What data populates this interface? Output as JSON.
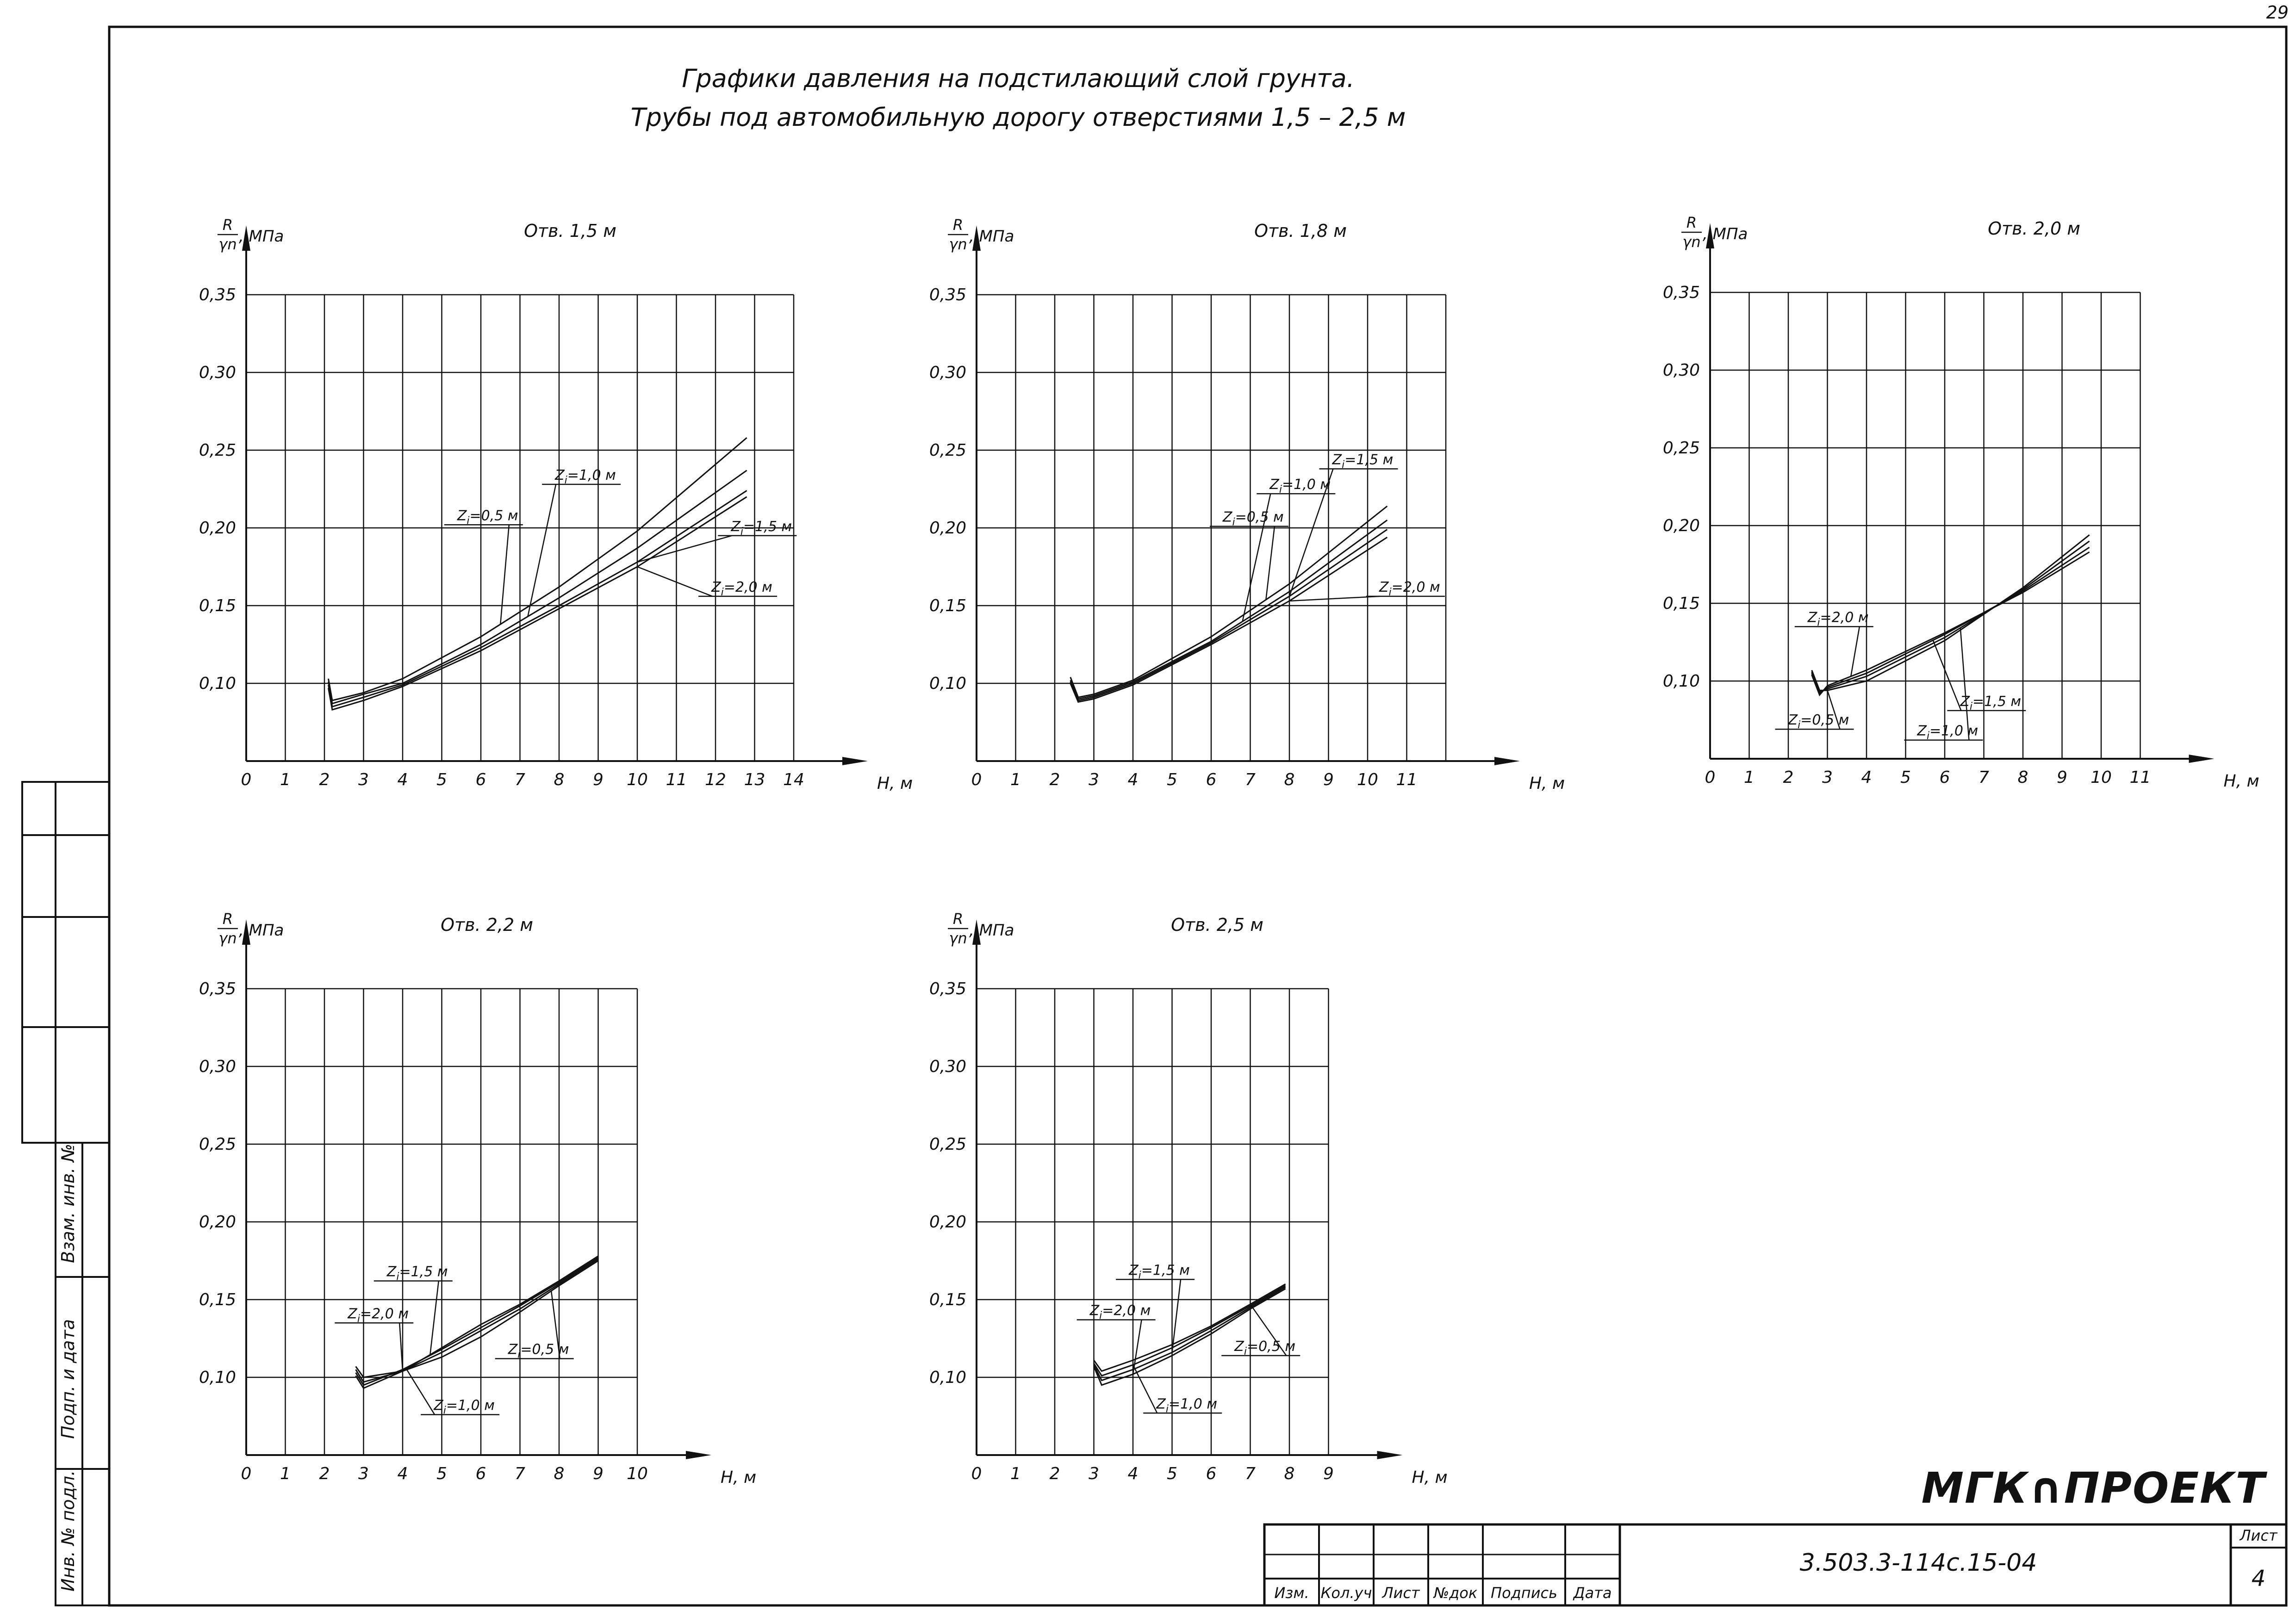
{
  "page_number": "29",
  "title": {
    "line1": "Графики давления на подстилающий слой грунта.",
    "line2": "Трубы под автомобильную дорогу отверстиями 1,5 – 2,5 м"
  },
  "y_axis_fraction": {
    "numerator": "R",
    "denominator": "γn",
    "unit": ", МПа"
  },
  "x_axis_label": "H, м",
  "chart_data": [
    {
      "type": "line",
      "title": "Отв. 1,5 м",
      "xlim": [
        0,
        14
      ],
      "ylim": [
        0.05,
        0.35
      ],
      "x_ticks": [
        "0",
        "1",
        "2",
        "3",
        "4",
        "5",
        "6",
        "7",
        "8",
        "9",
        "10",
        "11",
        "12",
        "13",
        "14"
      ],
      "y_ticks": [
        "0,10",
        "0,15",
        "0,20",
        "0,25",
        "0,30",
        "0,35"
      ],
      "grid": true,
      "series": [
        {
          "name": "Zi=0,5 м",
          "x": [
            2.1,
            2.2,
            3,
            4,
            6,
            8,
            10,
            12.8
          ],
          "y": [
            0.103,
            0.089,
            0.094,
            0.103,
            0.13,
            0.162,
            0.198,
            0.258
          ]
        },
        {
          "name": "Zi=1,0 м",
          "x": [
            2.1,
            2.2,
            3,
            4,
            6,
            8,
            10,
            12.8
          ],
          "y": [
            0.101,
            0.087,
            0.093,
            0.1,
            0.125,
            0.155,
            0.187,
            0.237
          ]
        },
        {
          "name": "Zi=1,5 м",
          "x": [
            2.1,
            2.2,
            3,
            4,
            6,
            8,
            10,
            12.8
          ],
          "y": [
            0.099,
            0.085,
            0.091,
            0.099,
            0.123,
            0.15,
            0.178,
            0.224
          ]
        },
        {
          "name": "Zi=2,0 м",
          "x": [
            2.1,
            2.2,
            3,
            4,
            6,
            8,
            10,
            12.8
          ],
          "y": [
            0.097,
            0.083,
            0.089,
            0.098,
            0.121,
            0.148,
            0.175,
            0.22
          ]
        }
      ],
      "labels": [
        {
          "text": "Zi=0,5 м",
          "x": 5.3,
          "y": 0.202
        },
        {
          "text": "Zi=1,0 м",
          "x": 7.8,
          "y": 0.228
        },
        {
          "text": "Zi=1,5 м",
          "x": 12.3,
          "y": 0.195
        },
        {
          "text": "Zi=2,0 м",
          "x": 11.8,
          "y": 0.156
        }
      ]
    },
    {
      "type": "line",
      "title": "Отв. 1,8 м",
      "xlim": [
        0,
        12
      ],
      "ylim": [
        0.05,
        0.35
      ],
      "x_ticks": [
        "0",
        "1",
        "2",
        "3",
        "4",
        "5",
        "6",
        "7",
        "8",
        "9",
        "10",
        "11"
      ],
      "y_ticks": [
        "0,10",
        "0,15",
        "0,20",
        "0,25",
        "0,30",
        "0,35"
      ],
      "grid": true,
      "series": [
        {
          "name": "Zi=0,5 м",
          "x": [
            2.4,
            2.6,
            3,
            4,
            6,
            8,
            10.5
          ],
          "y": [
            0.104,
            0.091,
            0.093,
            0.102,
            0.13,
            0.164,
            0.214
          ]
        },
        {
          "name": "Zi=1,0 м",
          "x": [
            2.4,
            2.6,
            3,
            4,
            6,
            8,
            10.5
          ],
          "y": [
            0.102,
            0.09,
            0.092,
            0.101,
            0.127,
            0.159,
            0.205
          ]
        },
        {
          "name": "Zi=1,5 м",
          "x": [
            2.4,
            2.6,
            3,
            4,
            6,
            8,
            10.5
          ],
          "y": [
            0.101,
            0.089,
            0.091,
            0.1,
            0.126,
            0.156,
            0.199
          ]
        },
        {
          "name": "Zi=2,0 м",
          "x": [
            2.4,
            2.6,
            3,
            4,
            6,
            8,
            10.5
          ],
          "y": [
            0.1,
            0.088,
            0.09,
            0.099,
            0.125,
            0.153,
            0.194
          ]
        }
      ],
      "labels": [
        {
          "text": "Zi=0,5 м",
          "x": 6.2,
          "y": 0.201
        },
        {
          "text": "Zi=1,0 м",
          "x": 7.4,
          "y": 0.222
        },
        {
          "text": "Zi=1,5 м",
          "x": 9.0,
          "y": 0.238
        },
        {
          "text": "Zi=2,0 м",
          "x": 10.2,
          "y": 0.156
        }
      ]
    },
    {
      "type": "line",
      "title": "Отв. 2,0 м",
      "xlim": [
        0,
        12
      ],
      "ylim": [
        0.05,
        0.35
      ],
      "x_ticks": [
        "0",
        "1",
        "2",
        "3",
        "4",
        "5",
        "6",
        "7",
        "8",
        "9",
        "10",
        "11"
      ],
      "y_ticks": [
        "0,10",
        "0,15",
        "0,20",
        "0,25",
        "0,30",
        "0,35"
      ],
      "grid": true,
      "series": [
        {
          "name": "Zi=0,5 м",
          "x": [
            2.6,
            2.8,
            3,
            4,
            6,
            8,
            9.7
          ],
          "y": [
            0.107,
            0.094,
            0.094,
            0.1,
            0.126,
            0.16,
            0.194
          ]
        },
        {
          "name": "Zi=1,0 м",
          "x": [
            2.6,
            2.8,
            3,
            4,
            6,
            8,
            9.7
          ],
          "y": [
            0.106,
            0.093,
            0.095,
            0.103,
            0.128,
            0.159,
            0.19
          ]
        },
        {
          "name": "Zi=1,5 м",
          "x": [
            2.6,
            2.8,
            3,
            4,
            6,
            8,
            9.7
          ],
          "y": [
            0.105,
            0.092,
            0.096,
            0.105,
            0.13,
            0.158,
            0.186
          ]
        },
        {
          "name": "Zi=2,0 м",
          "x": [
            2.6,
            2.8,
            3,
            4,
            6,
            8,
            9.7
          ],
          "y": [
            0.104,
            0.091,
            0.097,
            0.107,
            0.131,
            0.157,
            0.183
          ]
        }
      ],
      "labels": [
        {
          "text": "Zi=2,0 м",
          "x": 2.4,
          "y": 0.135
        },
        {
          "text": "Zi=1,5 м",
          "x": 6.3,
          "y": 0.081
        },
        {
          "text": "Zi=1,0 м",
          "x": 5.2,
          "y": 0.062
        },
        {
          "text": "Zi=0,5 м",
          "x": 1.9,
          "y": 0.069
        }
      ]
    },
    {
      "type": "line",
      "title": "Отв. 2,2 м",
      "xlim": [
        0,
        10
      ],
      "ylim": [
        0.05,
        0.35
      ],
      "x_ticks": [
        "0",
        "1",
        "2",
        "3",
        "4",
        "5",
        "6",
        "7",
        "8",
        "9",
        "10"
      ],
      "y_ticks": [
        "0,10",
        "0,15",
        "0,20",
        "0,25",
        "0,30",
        "0,35"
      ],
      "grid": true,
      "series": [
        {
          "name": "Zi=0,5 м",
          "x": [
            2.8,
            3.0,
            4,
            5,
            6,
            7,
            8,
            9
          ],
          "y": [
            0.107,
            0.1,
            0.104,
            0.113,
            0.126,
            0.142,
            0.159,
            0.175
          ]
        },
        {
          "name": "Zi=1,0 м",
          "x": [
            2.8,
            3.0,
            4,
            5,
            6,
            7,
            8,
            9
          ],
          "y": [
            0.105,
            0.097,
            0.104,
            0.116,
            0.13,
            0.144,
            0.16,
            0.176
          ]
        },
        {
          "name": "Zi=1,5 м",
          "x": [
            2.8,
            3.0,
            4,
            5,
            6,
            7,
            8,
            9
          ],
          "y": [
            0.103,
            0.095,
            0.105,
            0.118,
            0.132,
            0.146,
            0.161,
            0.177
          ]
        },
        {
          "name": "Zi=2,0 м",
          "x": [
            2.8,
            3.0,
            4,
            5,
            6,
            7,
            8,
            9
          ],
          "y": [
            0.101,
            0.093,
            0.104,
            0.119,
            0.134,
            0.147,
            0.162,
            0.178
          ]
        }
      ],
      "labels": [
        {
          "text": "Zi=1,5 м",
          "x": 3.5,
          "y": 0.162
        },
        {
          "text": "Zi=2,0 м",
          "x": 2.5,
          "y": 0.135
        },
        {
          "text": "Zi=0,5 м",
          "x": 6.6,
          "y": 0.112
        },
        {
          "text": "Zi=1,0 м",
          "x": 4.7,
          "y": 0.076
        }
      ]
    },
    {
      "type": "line",
      "title": "Отв. 2,5 м",
      "xlim": [
        0,
        9
      ],
      "ylim": [
        0.05,
        0.35
      ],
      "x_ticks": [
        "0",
        "1",
        "2",
        "3",
        "4",
        "5",
        "6",
        "7",
        "8",
        "9"
      ],
      "y_ticks": [
        "0,10",
        "0,15",
        "0,20",
        "0,25",
        "0,30",
        "0,35"
      ],
      "grid": true,
      "series": [
        {
          "name": "Zi=0,5 м",
          "x": [
            3.0,
            3.2,
            4,
            5,
            6,
            7,
            7.9
          ],
          "y": [
            0.111,
            0.104,
            0.111,
            0.121,
            0.133,
            0.147,
            0.16
          ]
        },
        {
          "name": "Zi=1,0 м",
          "x": [
            3.0,
            3.2,
            4,
            5,
            6,
            7,
            7.9
          ],
          "y": [
            0.109,
            0.101,
            0.108,
            0.119,
            0.132,
            0.146,
            0.159
          ]
        },
        {
          "name": "Zi=1,5 м",
          "x": [
            3.0,
            3.2,
            4,
            5,
            6,
            7,
            7.9
          ],
          "y": [
            0.108,
            0.098,
            0.105,
            0.116,
            0.13,
            0.145,
            0.158
          ]
        },
        {
          "name": "Zi=2,0 м",
          "x": [
            3.0,
            3.2,
            4,
            5,
            6,
            7,
            7.9
          ],
          "y": [
            0.107,
            0.095,
            0.102,
            0.114,
            0.128,
            0.144,
            0.157
          ]
        }
      ],
      "labels": [
        {
          "text": "Zi=1,5 м",
          "x": 3.8,
          "y": 0.163
        },
        {
          "text": "Zi=2,0 м",
          "x": 2.8,
          "y": 0.137
        },
        {
          "text": "Zi=0,5 м",
          "x": 6.5,
          "y": 0.114
        },
        {
          "text": "Zi=1,0 м",
          "x": 4.5,
          "y": 0.077
        }
      ]
    }
  ],
  "side_stamp": {
    "labels": [
      "Взам. инв. №",
      "Подп. и дата",
      "Инв. № подл."
    ]
  },
  "title_block": {
    "columns": [
      "Изм.",
      "Кол.уч",
      "Лист",
      "№док",
      "Подпись",
      "Дата"
    ],
    "document_code": "3.503.3-114с.15-04",
    "sheet_label": "Лист",
    "sheet_number": "4"
  },
  "logo_text": "МГК∩ПРОЕКТ",
  "colors": {
    "ink": "#111111",
    "paper": "#ffffff"
  }
}
